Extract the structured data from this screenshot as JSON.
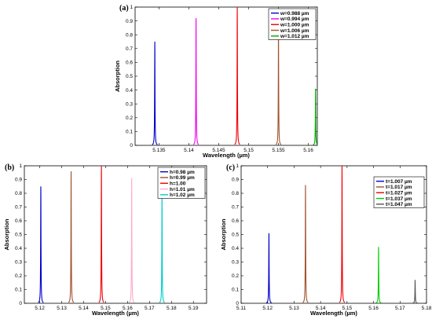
{
  "chart_data": [
    {
      "panel": "(a)",
      "type": "line",
      "xlabel": "Wavelength (µm)",
      "ylabel": "Absorption",
      "xlim": [
        5.131,
        5.1615
      ],
      "ylim": [
        0,
        1
      ],
      "xticks": [
        5.135,
        5.14,
        5.145,
        5.15,
        5.155,
        5.16
      ],
      "xtick_labels": [
        "5.135",
        "5.14",
        "5.145",
        "5.15",
        "5.155",
        "5.16"
      ],
      "yticks": [
        0,
        0.1,
        0.2,
        0.3,
        0.4,
        0.5,
        0.6,
        0.7,
        0.8,
        0.9,
        1
      ],
      "ytick_labels": [
        "0",
        "0.1",
        "0.2",
        "0.3",
        "0.4",
        "0.5",
        "0.6",
        "0.7",
        "0.8",
        "0.9",
        "1"
      ],
      "legend_position": "top-right",
      "series": [
        {
          "name": "w=0.988 µm",
          "color": "#0000cc",
          "peak_x": 5.1343,
          "peak_y": 0.75
        },
        {
          "name": "w=0.994 µm",
          "color": "#ee00ee",
          "peak_x": 5.1412,
          "peak_y": 0.92
        },
        {
          "name": "w=1.000 µm",
          "color": "#ee0000",
          "peak_x": 5.1481,
          "peak_y": 1.0
        },
        {
          "name": "w=1.006 µm",
          "color": "#a0522d",
          "peak_x": 5.155,
          "peak_y": 0.84
        },
        {
          "name": "w=1.012 µm",
          "color": "#00aa00",
          "peak_x": 5.1612,
          "peak_y": 0.41
        }
      ]
    },
    {
      "panel": "(b)",
      "type": "line",
      "xlabel": "Wavelength (µm)",
      "ylabel": "Absorption",
      "xlim": [
        5.113,
        5.196
      ],
      "ylim": [
        0,
        1
      ],
      "xticks": [
        5.12,
        5.13,
        5.14,
        5.15,
        5.16,
        5.17,
        5.18,
        5.19
      ],
      "xtick_labels": [
        "5.12",
        "5.13",
        "5.14",
        "5.15",
        "5.16",
        "5.17",
        "5.18",
        "5.19"
      ],
      "yticks": [
        0,
        0.1,
        0.2,
        0.3,
        0.4,
        0.5,
        0.6,
        0.7,
        0.8,
        0.9,
        1
      ],
      "ytick_labels": [
        "0",
        "0.1",
        "0.2",
        "0.3",
        "0.4",
        "0.5",
        "0.6",
        "0.7",
        "0.8",
        "0.9",
        "1"
      ],
      "legend_position": "top-right",
      "series": [
        {
          "name": "h=0.98 µm",
          "color": "#0000cc",
          "peak_x": 5.1205,
          "peak_y": 0.85
        },
        {
          "name": "h=0.99 µm",
          "color": "#a0522d",
          "peak_x": 5.1343,
          "peak_y": 0.96
        },
        {
          "name": "h=1.00",
          "color": "#ee0000",
          "peak_x": 5.1481,
          "peak_y": 1.0
        },
        {
          "name": "h=1.01 µm",
          "color": "#ffaacc",
          "peak_x": 5.1619,
          "peak_y": 0.91
        },
        {
          "name": "h=1.02 µm",
          "color": "#00cccc",
          "peak_x": 5.1757,
          "peak_y": 0.83
        }
      ]
    },
    {
      "panel": "(c)",
      "type": "line",
      "xlabel": "Wavelength (µm)",
      "ylabel": "Absorption",
      "xlim": [
        5.11,
        5.18
      ],
      "ylim": [
        0,
        1
      ],
      "xticks": [
        5.11,
        5.12,
        5.13,
        5.14,
        5.15,
        5.16,
        5.17,
        5.18
      ],
      "xtick_labels": [
        "5.11",
        "5.12",
        "5.13",
        "5.14",
        "5.15",
        "5.16",
        "5.17",
        "5.18"
      ],
      "yticks": [
        0,
        0.1,
        0.2,
        0.3,
        0.4,
        0.5,
        0.6,
        0.7,
        0.8,
        0.9,
        1
      ],
      "ytick_labels": [
        "0",
        "0.1",
        "0.2",
        "0.3",
        "0.4",
        "0.5",
        "0.6",
        "0.7",
        "0.8",
        "0.9",
        "1"
      ],
      "legend_position": "top-right",
      "series": [
        {
          "name": "t=1.007 µm",
          "color": "#0000cc",
          "peak_x": 5.1205,
          "peak_y": 0.51
        },
        {
          "name": "t=1.017 µm",
          "color": "#a0522d",
          "peak_x": 5.1343,
          "peak_y": 0.86
        },
        {
          "name": "t=1.027 µm",
          "color": "#ee0000",
          "peak_x": 5.1481,
          "peak_y": 1.0
        },
        {
          "name": "t=1.037 µm",
          "color": "#00cc00",
          "peak_x": 5.1619,
          "peak_y": 0.41
        },
        {
          "name": "t=1.047 µm",
          "color": "#555555",
          "peak_x": 5.1757,
          "peak_y": 0.17
        }
      ]
    }
  ]
}
